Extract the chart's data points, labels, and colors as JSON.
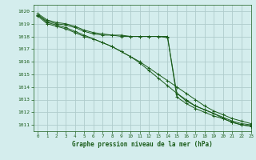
{
  "title": "Graphe pression niveau de la mer (hPa)",
  "bg_color": "#d4eded",
  "grid_color": "#b0cccc",
  "line_color": "#1a5c1a",
  "xlim": [
    -0.5,
    23
  ],
  "ylim": [
    1010.5,
    1020.5
  ],
  "yticks": [
    1011,
    1012,
    1013,
    1014,
    1015,
    1016,
    1017,
    1018,
    1019,
    1020
  ],
  "xticks": [
    0,
    1,
    2,
    3,
    4,
    5,
    6,
    7,
    8,
    9,
    10,
    11,
    12,
    13,
    14,
    15,
    16,
    17,
    18,
    19,
    20,
    21,
    22,
    23
  ],
  "series": [
    [
      1019.7,
      1019.1,
      1018.9,
      1018.7,
      1018.4,
      1018.1,
      1017.8,
      1017.5,
      1017.2,
      1016.8,
      1016.4,
      1016.0,
      1015.5,
      1015.0,
      1014.5,
      1014.0,
      1013.5,
      1013.0,
      1012.5,
      1012.1,
      1011.8,
      1011.5,
      1011.3,
      1011.1
    ],
    [
      1019.8,
      1019.3,
      1019.1,
      1019.0,
      1018.8,
      1018.5,
      1018.3,
      1018.2,
      1018.1,
      1018.0,
      1018.0,
      1018.0,
      1018.0,
      1018.0,
      1017.9,
      1013.5,
      1013.0,
      1012.5,
      1012.2,
      1011.9,
      1011.6,
      1011.3,
      1011.1,
      1011.0
    ],
    [
      1019.7,
      1019.2,
      1019.0,
      1018.9,
      1018.7,
      1018.4,
      1018.2,
      1018.1,
      1018.1,
      1018.1,
      1018.0,
      1018.0,
      1018.0,
      1018.0,
      1018.0,
      1013.2,
      1012.7,
      1012.3,
      1012.0,
      1011.7,
      1011.5,
      1011.2,
      1011.0,
      1010.9
    ],
    [
      1019.6,
      1019.0,
      1018.8,
      1018.6,
      1018.3,
      1018.0,
      1017.8,
      1017.5,
      1017.2,
      1016.8,
      1016.4,
      1015.9,
      1015.3,
      1014.7,
      1014.1,
      1013.5,
      1012.9,
      1012.5,
      1012.2,
      1011.9,
      1011.5,
      1011.2,
      1011.0,
      1010.9
    ]
  ]
}
